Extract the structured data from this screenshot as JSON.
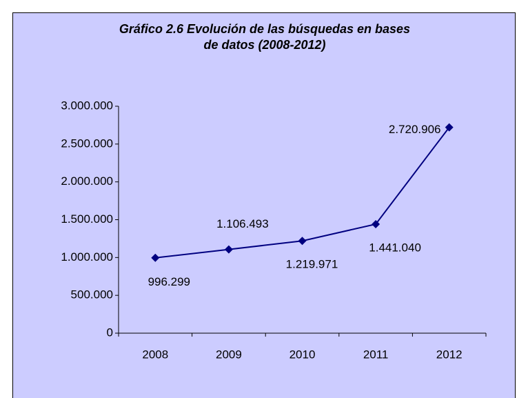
{
  "chart_data": {
    "type": "line",
    "title": [
      "Gráfico 2.6 Evolución de las búsquedas en bases",
      "de datos (2008-2012)"
    ],
    "categories": [
      "2008",
      "2009",
      "2010",
      "2011",
      "2012"
    ],
    "values": [
      996299,
      1106493,
      1219971,
      1441040,
      2720906
    ],
    "value_labels": [
      "996.299",
      "1.106.493",
      "1.219.971",
      "1.441.040",
      "2.720.906"
    ],
    "color": "#000080",
    "ylim": [
      0,
      3000000
    ],
    "yticks": [
      0,
      {
        "value": 500000,
        "label": "500.000"
      },
      {
        "value": 1000000,
        "label": "1.000.000"
      },
      {
        "value": 1500000,
        "label": "1.500.000"
      },
      {
        "value": 2000000,
        "label": "2.000.000"
      },
      {
        "value": 2500000,
        "label": "2.500.000"
      },
      {
        "value": 3000000,
        "label": "3.000.000"
      }
    ]
  }
}
